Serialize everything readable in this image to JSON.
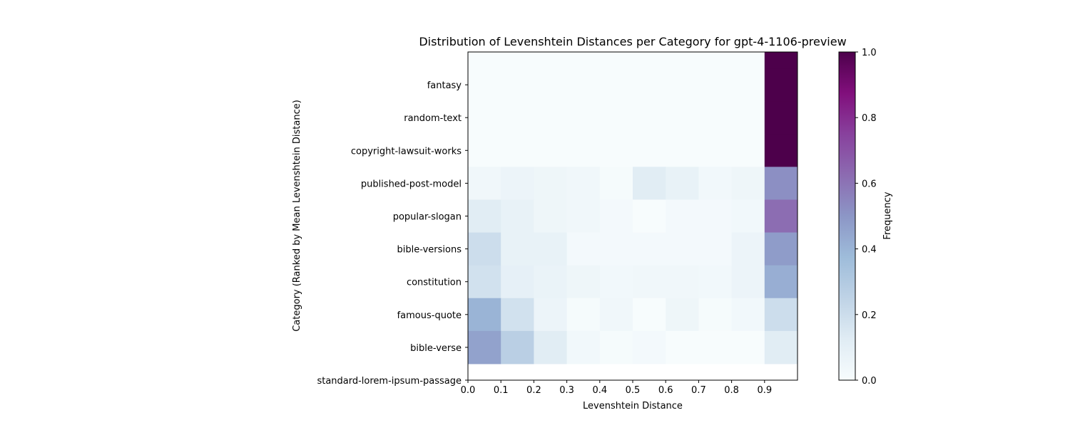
{
  "chart_data": {
    "type": "heatmap",
    "title": "Distribution of Levenshtein Distances per Category for gpt-4-1106-preview",
    "xlabel": "Levenshtein Distance",
    "ylabel": "Category (Ranked by Mean Levenshtein Distance)",
    "xlim": [
      0.0,
      1.0
    ],
    "x_ticks": [
      "0.0",
      "0.1",
      "0.2",
      "0.3",
      "0.4",
      "0.5",
      "0.6",
      "0.7",
      "0.8",
      "0.9"
    ],
    "x_bins": [
      0.0,
      0.1,
      0.2,
      0.3,
      0.4,
      0.5,
      0.6,
      0.7,
      0.8,
      0.9,
      1.0
    ],
    "rows": [
      {
        "category": "",
        "values": [
          0,
          0,
          0,
          0,
          0,
          0,
          0,
          0,
          0,
          1.0
        ]
      },
      {
        "category": "fantasy",
        "values": [
          0,
          0,
          0,
          0,
          0,
          0,
          0,
          0,
          0,
          1.0
        ]
      },
      {
        "category": "random-text",
        "values": [
          0,
          0,
          0,
          0,
          0,
          0,
          0,
          0,
          0,
          1.0
        ]
      },
      {
        "category": "copyright-lawsuit-works",
        "values": [
          0,
          0,
          0,
          0,
          0,
          0,
          0,
          0,
          0,
          1.0
        ]
      },
      {
        "category": "published-post-model",
        "values": [
          0.04,
          0.06,
          0.05,
          0.04,
          0.01,
          0.12,
          0.08,
          0.03,
          0.05,
          0.52
        ]
      },
      {
        "category": "popular-slogan",
        "values": [
          0.12,
          0.08,
          0.05,
          0.04,
          0.02,
          0.0,
          0.02,
          0.02,
          0.03,
          0.62
        ]
      },
      {
        "category": "bible-versions",
        "values": [
          0.2,
          0.08,
          0.08,
          0.02,
          0.02,
          0.02,
          0.02,
          0.02,
          0.06,
          0.48
        ]
      },
      {
        "category": "constitution",
        "values": [
          0.18,
          0.09,
          0.07,
          0.05,
          0.03,
          0.04,
          0.04,
          0.03,
          0.06,
          0.42
        ]
      },
      {
        "category": "famous-quote",
        "values": [
          0.4,
          0.18,
          0.06,
          0.01,
          0.04,
          0.0,
          0.05,
          0.01,
          0.03,
          0.2
        ]
      },
      {
        "category": "bible-verse",
        "values": [
          0.46,
          0.27,
          0.12,
          0.03,
          0.01,
          0.02,
          0.0,
          0.0,
          0.0,
          0.12
        ]
      },
      {
        "category": "standard-lorem-ipsum-passage",
        "values": []
      }
    ],
    "colorbar": {
      "label": "Frequency",
      "range": [
        0.0,
        1.0
      ],
      "ticks": [
        "0.0",
        "0.2",
        "0.4",
        "0.6",
        "0.8",
        "1.0"
      ],
      "colormap": [
        "#f7fcfd",
        "#e0ecf4",
        "#bfd3e6",
        "#9ebcda",
        "#8c96c6",
        "#8c6bb1",
        "#88419d",
        "#810f7c",
        "#4d004b"
      ]
    }
  }
}
